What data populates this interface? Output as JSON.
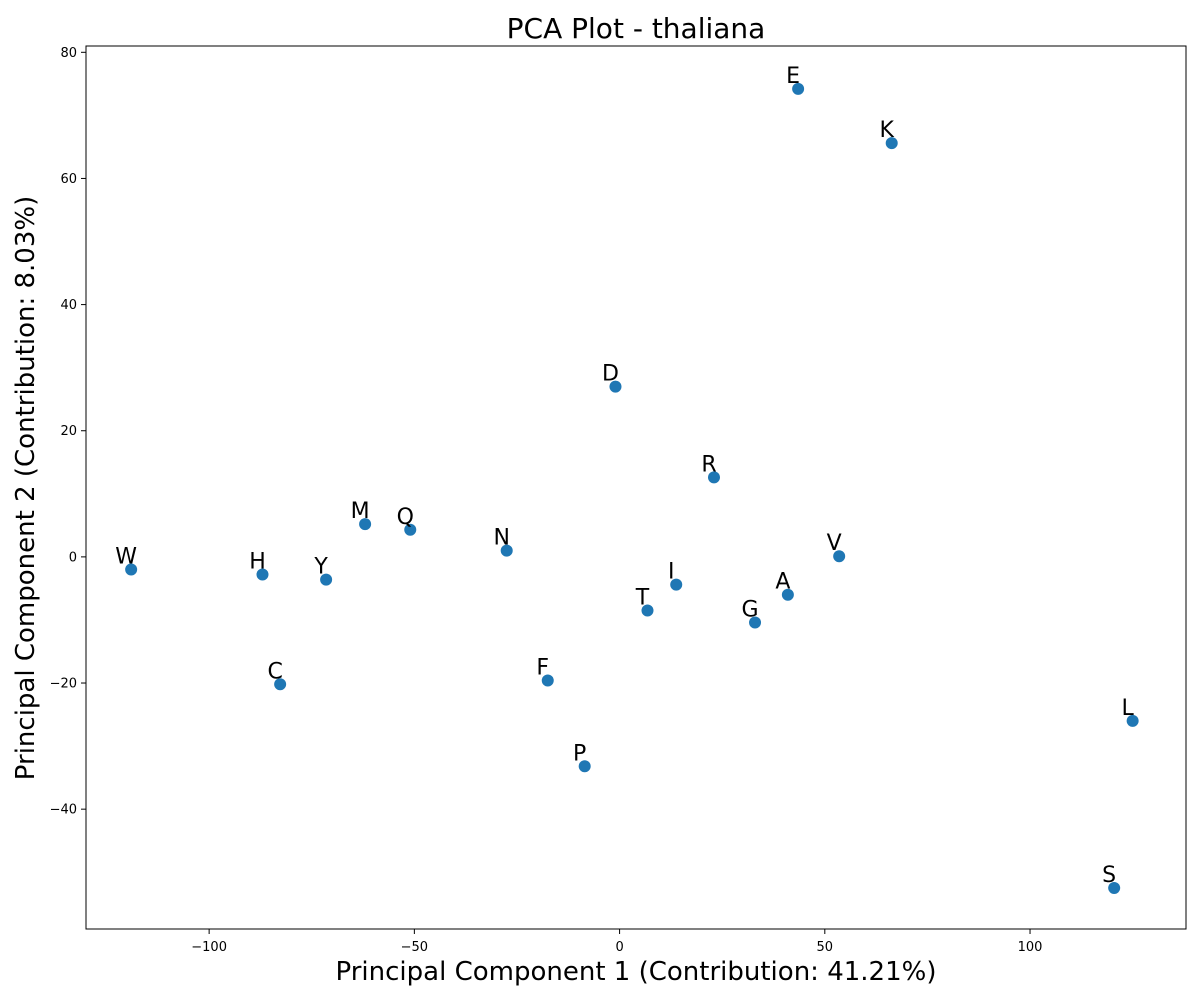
{
  "chart_data": {
    "type": "scatter",
    "title": "PCA Plot - thaliana",
    "xlabel": "Principal Component 1 (Contribution: 41.21%)",
    "ylabel": "Principal Component 2 (Contribution: 8.03%)",
    "xlim": [
      -130,
      138
    ],
    "ylim": [
      -59,
      81
    ],
    "xticks": [
      -100,
      -50,
      0,
      50,
      100
    ],
    "yticks": [
      -40,
      -20,
      0,
      20,
      40,
      60,
      80
    ],
    "xtick_labels": [
      "−100",
      "−50",
      "0",
      "50",
      "100"
    ],
    "ytick_labels": [
      "−40",
      "−20",
      "0",
      "20",
      "40",
      "60",
      "80"
    ],
    "grid": false,
    "marker_color": "#1f77b4",
    "points": [
      {
        "label": "E",
        "x": 43.5,
        "y": 74.2
      },
      {
        "label": "K",
        "x": 66.3,
        "y": 65.6
      },
      {
        "label": "D",
        "x": -1.0,
        "y": 27.0
      },
      {
        "label": "R",
        "x": 23.0,
        "y": 12.6
      },
      {
        "label": "M",
        "x": -62.0,
        "y": 5.2
      },
      {
        "label": "Q",
        "x": -51.0,
        "y": 4.3
      },
      {
        "label": "N",
        "x": -27.5,
        "y": 1.0
      },
      {
        "label": "V",
        "x": 53.5,
        "y": 0.1
      },
      {
        "label": "W",
        "x": -119.0,
        "y": -2.0
      },
      {
        "label": "H",
        "x": -87.0,
        "y": -2.8
      },
      {
        "label": "Y",
        "x": -71.5,
        "y": -3.6
      },
      {
        "label": "I",
        "x": 13.8,
        "y": -4.4
      },
      {
        "label": "A",
        "x": 41.0,
        "y": -6.0
      },
      {
        "label": "T",
        "x": 6.8,
        "y": -8.5
      },
      {
        "label": "G",
        "x": 33.0,
        "y": -10.4
      },
      {
        "label": "F",
        "x": -17.5,
        "y": -19.6
      },
      {
        "label": "C",
        "x": -82.7,
        "y": -20.2
      },
      {
        "label": "L",
        "x": 125.0,
        "y": -26.0
      },
      {
        "label": "P",
        "x": -8.5,
        "y": -33.2
      },
      {
        "label": "S",
        "x": 120.5,
        "y": -52.5
      }
    ]
  }
}
